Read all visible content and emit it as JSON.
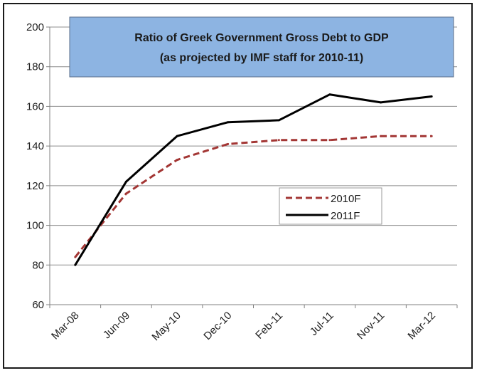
{
  "chart_data": {
    "type": "line",
    "title": "Ratio of Greek Government Gross Debt to GDP",
    "subtitle": "(as projected by IMF staff for 2010-11)",
    "xlabel": "",
    "ylabel": "",
    "categories": [
      "Mar-08",
      "Jun-09",
      "May-10",
      "Dec-10",
      "Feb-11",
      "Jul-11",
      "Nov-11",
      "Mar-12"
    ],
    "ylim": [
      60,
      200
    ],
    "yticks": [
      60,
      80,
      100,
      120,
      140,
      160,
      180,
      200
    ],
    "grid": true,
    "legend_position": "center-right",
    "series": [
      {
        "name": "2010F",
        "values": [
          84,
          116,
          133,
          141,
          143,
          143,
          145,
          145
        ],
        "color": "#a33634",
        "style": "dashed"
      },
      {
        "name": "2011F",
        "values": [
          80,
          122,
          145,
          152,
          153,
          166,
          162,
          165
        ],
        "color": "#000000",
        "style": "solid"
      }
    ],
    "title_box_color": "#8db4e2"
  }
}
